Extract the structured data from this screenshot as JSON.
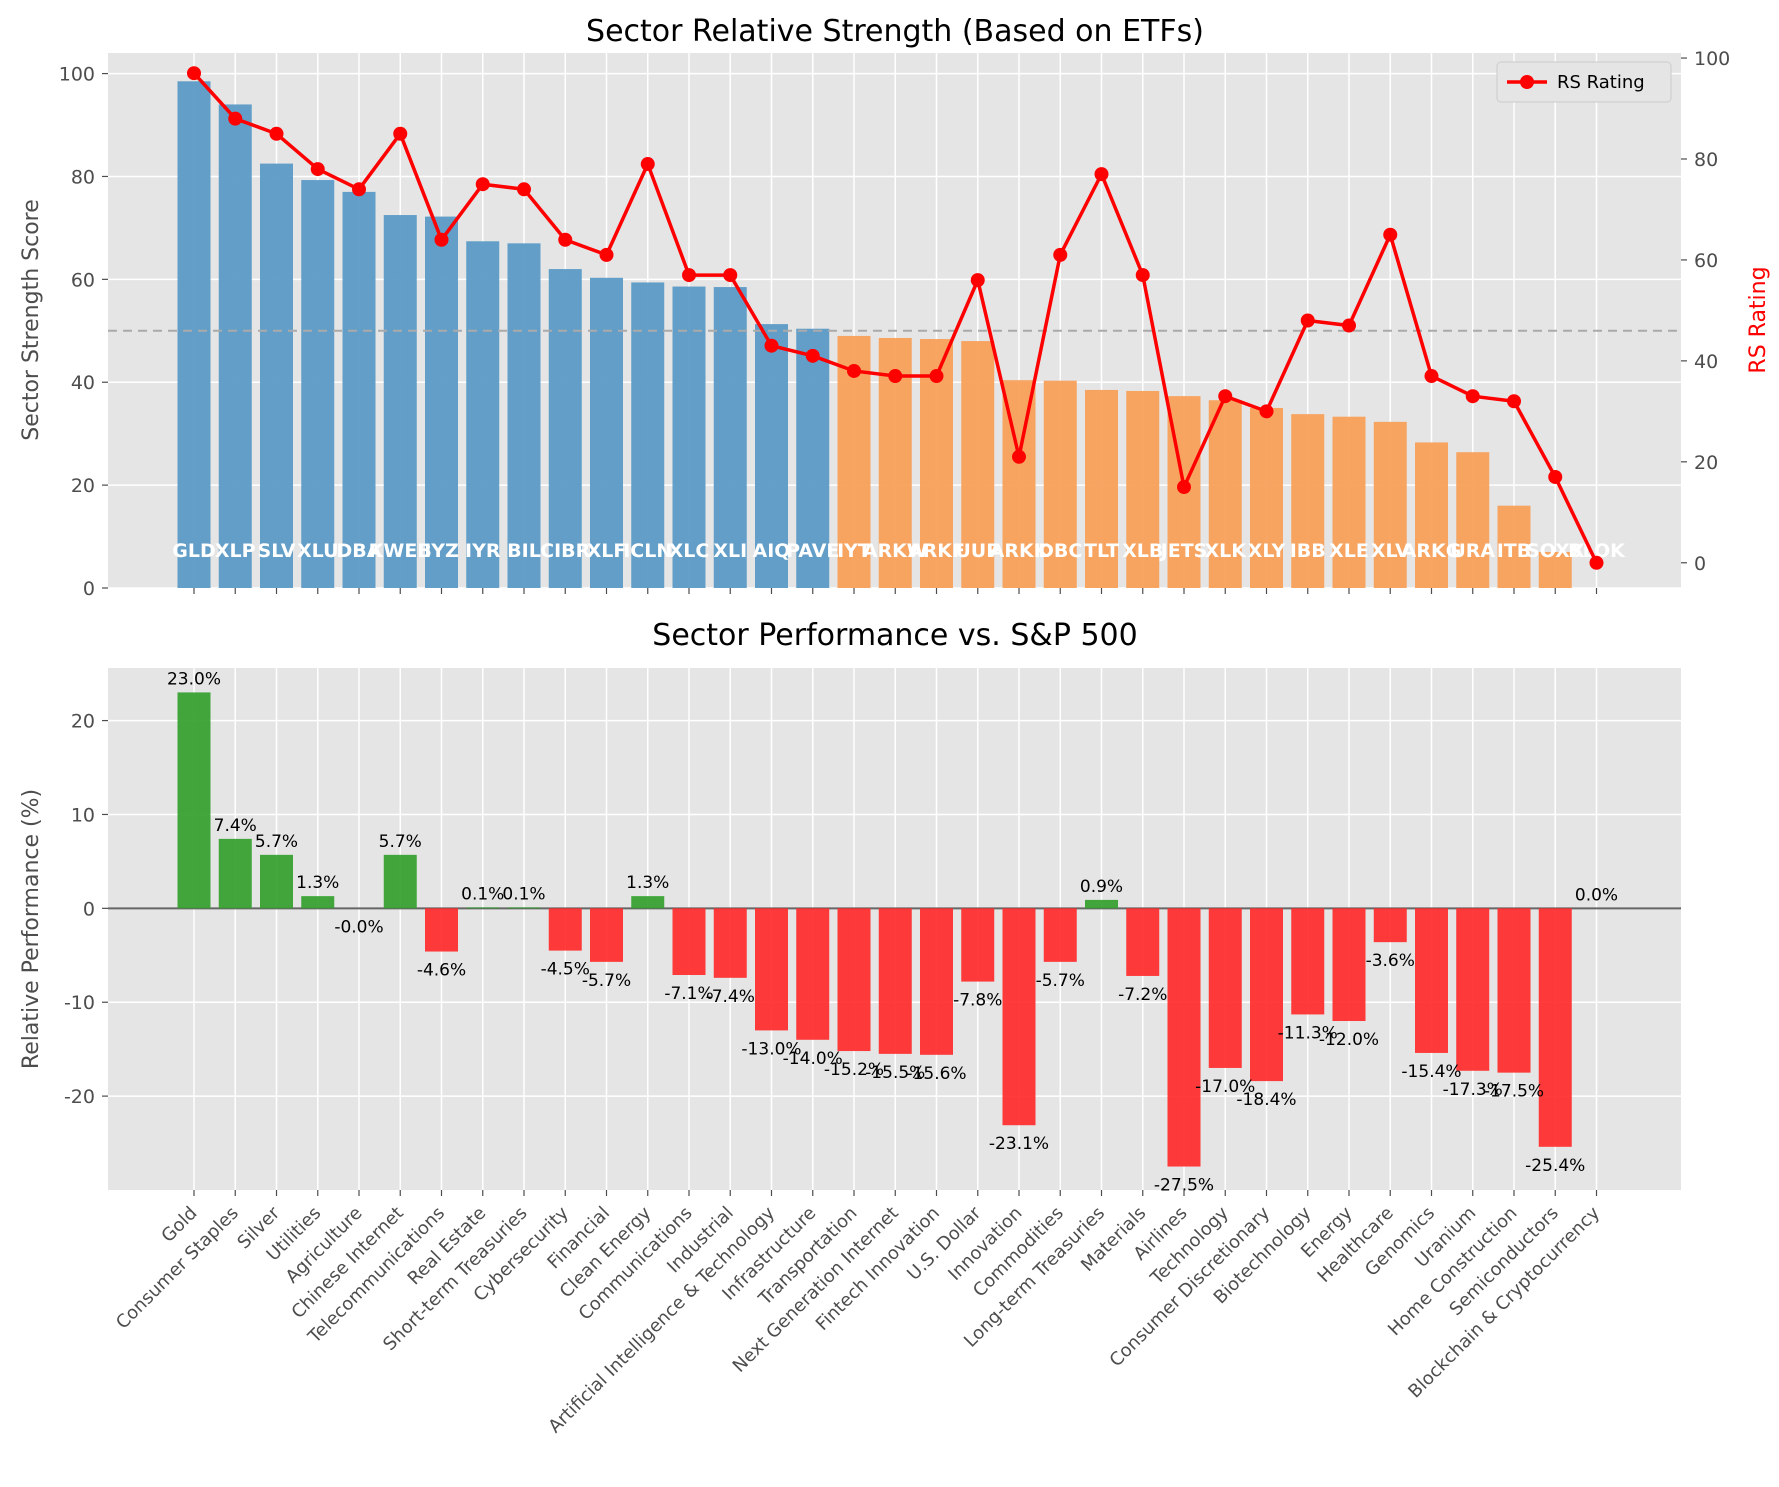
{
  "chart_data": [
    {
      "type": "bar",
      "title": "Sector Relative Strength (Based on ETFs)",
      "ylabel": "Sector Strength Score",
      "y2label": "RS Rating",
      "ylim": [
        0,
        104
      ],
      "y2lim": [
        -5,
        101
      ],
      "yticks": [
        0,
        20,
        40,
        60,
        80,
        100
      ],
      "y2ticks": [
        0,
        20,
        40,
        60,
        80,
        100
      ],
      "reference_line": 50,
      "grid": true,
      "legend": "top-right",
      "categories": [
        "GLD",
        "XLP",
        "SLV",
        "XLU",
        "DBA",
        "KWEB",
        "IYZ",
        "IYR",
        "BIL",
        "CIBR",
        "XLF",
        "ICLN",
        "XLC",
        "XLI",
        "AIQ",
        "PAVE",
        "IYT",
        "ARKW",
        "ARKF",
        "UUP",
        "ARKK",
        "DBC",
        "TLT",
        "XLB",
        "JETS",
        "XLK",
        "XLY",
        "IBB",
        "XLE",
        "XLV",
        "ARKG",
        "URA",
        "ITB",
        "SOXX",
        "BLOK"
      ],
      "series": [
        {
          "values": [
            98.5,
            94,
            82.5,
            79.3,
            77,
            72.5,
            72.2,
            67.4,
            67,
            62,
            60.3,
            59.4,
            58.6,
            58.5,
            51.3,
            50.4,
            49,
            48.6,
            48.4,
            48,
            40.4,
            40.3,
            38.5,
            38.3,
            37.3,
            36.5,
            35,
            33.8,
            33.3,
            32.3,
            28.3,
            26.4,
            16,
            7,
            0
          ],
          "color": "#5b9ac6"
        },
        {
          "name": "RS Rating",
          "values": [
            97,
            88,
            85,
            78,
            74,
            85,
            64,
            75,
            74,
            64,
            61,
            79,
            57,
            57,
            43,
            41,
            38,
            37,
            37,
            56,
            21,
            61,
            77,
            57,
            15,
            33,
            30,
            48,
            47,
            65,
            37,
            33,
            32,
            17,
            0
          ],
          "color": "#ff0000"
        }
      ],
      "colors": {
        "above": "#5b9ac6",
        "below": "#f8a05a",
        "rs": "#ff0000"
      }
    },
    {
      "type": "bar",
      "title": "Sector Performance vs. S&P 500",
      "ylabel": "Relative Performance (%)",
      "ylim": [
        -30,
        25.6
      ],
      "yticks": [
        -20,
        -10,
        0,
        10,
        20
      ],
      "grid": true,
      "categories": [
        "Gold",
        "Consumer Staples",
        "Silver",
        "Utilities",
        "Agriculture",
        "Chinese Internet",
        "Telecommunications",
        "Real Estate",
        "Short-term Treasuries",
        "Cybersecurity",
        "Financial",
        "Clean Energy",
        "Communications",
        "Industrial",
        "Artificial Intelligence & Technology",
        "Infrastructure",
        "Transportation",
        "Next Generation Internet",
        "Fintech Innovation",
        "U.S. Dollar",
        "Innovation",
        "Commodities",
        "Long-term Treasuries",
        "Materials",
        "Airlines",
        "Technology",
        "Consumer Discretionary",
        "Biotechnology",
        "Energy",
        "Healthcare",
        "Genomics",
        "Uranium",
        "Home Construction",
        "Semiconductors",
        "Blockchain & Cryptocurrency"
      ],
      "values": [
        23.0,
        7.4,
        5.7,
        1.3,
        -0.0,
        5.7,
        -4.6,
        0.1,
        0.1,
        -4.5,
        -5.7,
        1.3,
        -7.1,
        -7.4,
        -13.0,
        -14.0,
        -15.2,
        -15.5,
        -15.6,
        -7.8,
        -23.1,
        -5.7,
        0.9,
        -7.2,
        -27.5,
        -17.0,
        -18.4,
        -11.3,
        -12.0,
        -3.6,
        -15.4,
        -17.3,
        -17.5,
        -25.4,
        0.0
      ],
      "value_labels": [
        "23.0%",
        "7.4%",
        "5.7%",
        "1.3%",
        "-0.0%",
        "5.7%",
        "-4.6%",
        "0.1%",
        "0.1%",
        "-4.5%",
        "-5.7%",
        "1.3%",
        "-7.1%",
        "-7.4%",
        "-13.0%",
        "-14.0%",
        "-15.2%",
        "-15.5%",
        "-15.6%",
        "-7.8%",
        "-23.1%",
        "-5.7%",
        "0.9%",
        "-7.2%",
        "-27.5%",
        "-17.0%",
        "-18.4%",
        "-11.3%",
        "-12.0%",
        "-3.6%",
        "-15.4%",
        "-17.3%",
        "-17.5%",
        "-25.4%",
        "0.0%"
      ],
      "colors": {
        "positive": "#33a02c",
        "negative": "#ff2a2a"
      }
    }
  ]
}
